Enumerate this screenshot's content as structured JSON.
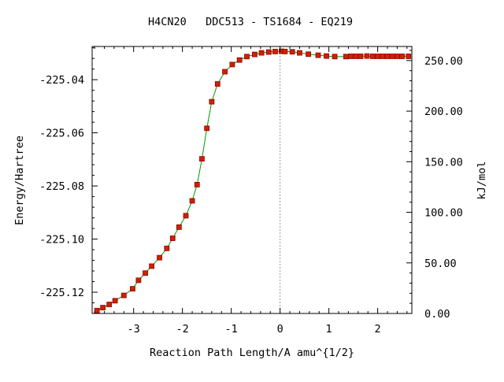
{
  "chart_data": {
    "type": "line",
    "title": "H4CN20   DDC513 - TS1684 - EQ219",
    "xlabel": "Reaction Path Length/A amu^{1/2}",
    "ylabel": "Energy/Hartree",
    "y2label": "kJ/mol",
    "xlim": [
      -3.85,
      2.7
    ],
    "ylim": [
      -225.128,
      -225.0275
    ],
    "y2lim": [
      0.0,
      263.9
    ],
    "x_ticks": [
      -3,
      -2,
      -1,
      0,
      1,
      2
    ],
    "x_tick_labels": [
      "-3",
      "-2",
      "-1",
      "0",
      "1",
      "2"
    ],
    "y_ticks": [
      -225.04,
      -225.06,
      -225.08,
      -225.1,
      -225.12
    ],
    "y_tick_labels": [
      "-225.04",
      "-225.06",
      "-225.08",
      "-225.10",
      "-225.12"
    ],
    "y2_ticks": [
      0,
      50,
      100,
      150,
      200,
      250
    ],
    "y2_tick_labels": [
      "0.00",
      "50.00",
      "100.00",
      "150.00",
      "200.00",
      "250.00"
    ],
    "ts_marker_x": 0.0,
    "grid": false,
    "colors": {
      "line": "#009900",
      "marker_fill": "#cc2200",
      "marker_edge": "#990000",
      "ts_line": "#999999"
    },
    "series": [
      {
        "x": [
          -3.75,
          -3.63,
          -3.5,
          -3.38,
          -3.2,
          -3.02,
          -2.9,
          -2.76,
          -2.63,
          -2.47,
          -2.32,
          -2.2,
          -2.07,
          -1.93,
          -1.8,
          -1.7,
          -1.6,
          -1.5,
          -1.4,
          -1.28,
          -1.13,
          -0.98,
          -0.83,
          -0.68,
          -0.52,
          -0.38,
          -0.23,
          -0.1,
          0.03,
          0.1,
          0.25,
          0.4,
          0.58,
          0.78,
          0.95,
          1.12,
          1.35,
          1.45,
          1.55,
          1.65,
          1.78,
          1.9,
          2.0,
          2.1,
          2.2,
          2.3,
          2.4,
          2.5,
          2.63
        ],
        "y": [
          -225.1269,
          -225.1258,
          -225.1246,
          -225.1232,
          -225.1212,
          -225.1187,
          -225.1155,
          -225.1128,
          -225.1102,
          -225.107,
          -225.1035,
          -225.0997,
          -225.0955,
          -225.0912,
          -225.0856,
          -225.0795,
          -225.0698,
          -225.0583,
          -225.0483,
          -225.0416,
          -225.037,
          -225.0343,
          -225.0326,
          -225.0313,
          -225.0305,
          -225.0299,
          -225.0296,
          -225.0294,
          -225.0293,
          -225.0294,
          -225.0295,
          -225.0299,
          -225.0304,
          -225.0308,
          -225.0311,
          -225.0313,
          -225.0313,
          -225.0312,
          -225.0312,
          -225.0312,
          -225.0311,
          -225.0312,
          -225.0312,
          -225.0312,
          -225.0312,
          -225.0312,
          -225.0312,
          -225.0312,
          -225.0312
        ]
      }
    ]
  }
}
